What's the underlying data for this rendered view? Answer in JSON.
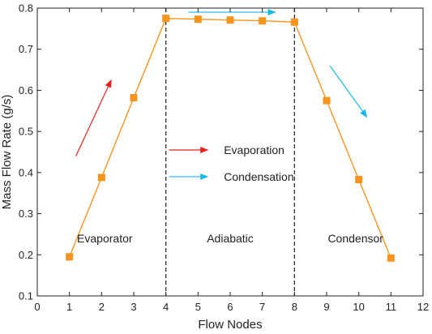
{
  "chart_data": {
    "type": "line",
    "xlabel": "Flow Nodes",
    "ylabel": "Mass Flow Rate (g/s)",
    "xlim": [
      0,
      12
    ],
    "ylim": [
      0.1,
      0.8
    ],
    "xticks": [
      0,
      1,
      2,
      3,
      4,
      5,
      6,
      7,
      8,
      9,
      10,
      11,
      12
    ],
    "yticks": [
      0.1,
      0.2,
      0.3,
      0.4,
      0.5,
      0.6,
      0.7,
      0.8
    ],
    "ytick_labels": [
      "0.1",
      "0.2",
      "0.3",
      "0.4",
      "0.5",
      "0.6",
      "0.7",
      "0.8"
    ],
    "grid": false,
    "series": [
      {
        "x": [
          1,
          2,
          3,
          4,
          5,
          6,
          7,
          8,
          9,
          10,
          11
        ],
        "y": [
          0.195,
          0.388,
          0.582,
          0.775,
          0.773,
          0.771,
          0.769,
          0.766,
          0.575,
          0.383,
          0.192
        ],
        "color": "#f7941d",
        "marker": "square"
      }
    ],
    "dividers": [
      4,
      8
    ],
    "regions": [
      {
        "label": "Evaporator",
        "x": 2.1,
        "y": 0.23
      },
      {
        "label": "Adiabatic",
        "x": 6.0,
        "y": 0.23
      },
      {
        "label": "Condensor",
        "x": 9.9,
        "y": 0.23
      }
    ],
    "legend": {
      "placement": "center",
      "items": [
        {
          "label": "Evaporation",
          "color": "#e8211d"
        },
        {
          "label": "Condensation",
          "color": "#1cb8e8"
        }
      ]
    },
    "annotation_arrows": [
      {
        "color": "#e8211d",
        "from": [
          1.2,
          0.44
        ],
        "to": [
          2.3,
          0.625
        ]
      },
      {
        "color": "#1cb8e8",
        "from": [
          4.7,
          0.79
        ],
        "to": [
          7.4,
          0.79
        ]
      },
      {
        "color": "#1cb8e8",
        "from": [
          9.1,
          0.66
        ],
        "to": [
          10.25,
          0.535
        ]
      }
    ]
  }
}
